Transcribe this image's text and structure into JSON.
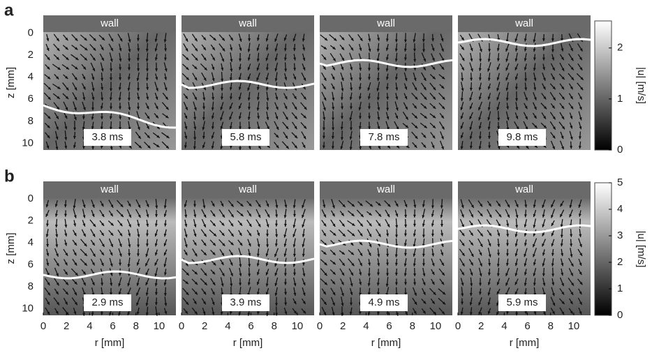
{
  "figure": {
    "rows": [
      {
        "label": "a",
        "ylabel": "z [mm]",
        "ylim": [
          -1.6,
          10.6
        ],
        "yticks": [
          0,
          2,
          4,
          6,
          8,
          10
        ],
        "panels": [
          {
            "wall": "wall",
            "time": "3.8 ms"
          },
          {
            "wall": "wall",
            "time": "5.8 ms"
          },
          {
            "wall": "wall",
            "time": "7.8 ms"
          },
          {
            "wall": "wall",
            "time": "9.8 ms"
          }
        ],
        "colorbar": {
          "label": "|u| [m/s]",
          "lim": [
            0,
            2.53
          ],
          "ticks": [
            0,
            1,
            2
          ]
        }
      },
      {
        "label": "b",
        "ylabel": "z [mm]",
        "ylim": [
          -1.6,
          10.6
        ],
        "yticks": [
          0,
          2,
          4,
          6,
          8,
          10
        ],
        "xlabel": "r [mm]",
        "xlim": [
          0,
          11.45
        ],
        "xticks": [
          0,
          2,
          4,
          6,
          8,
          10
        ],
        "panels": [
          {
            "wall": "wall",
            "time": "2.9 ms"
          },
          {
            "wall": "wall",
            "time": "3.9 ms"
          },
          {
            "wall": "wall",
            "time": "4.9 ms"
          },
          {
            "wall": "wall",
            "time": "5.9 ms"
          }
        ],
        "colorbar": {
          "label": "|u| [m/s]",
          "lim": [
            0,
            5
          ],
          "ticks": [
            0,
            1,
            2,
            3,
            4,
            5
          ]
        }
      }
    ]
  }
}
